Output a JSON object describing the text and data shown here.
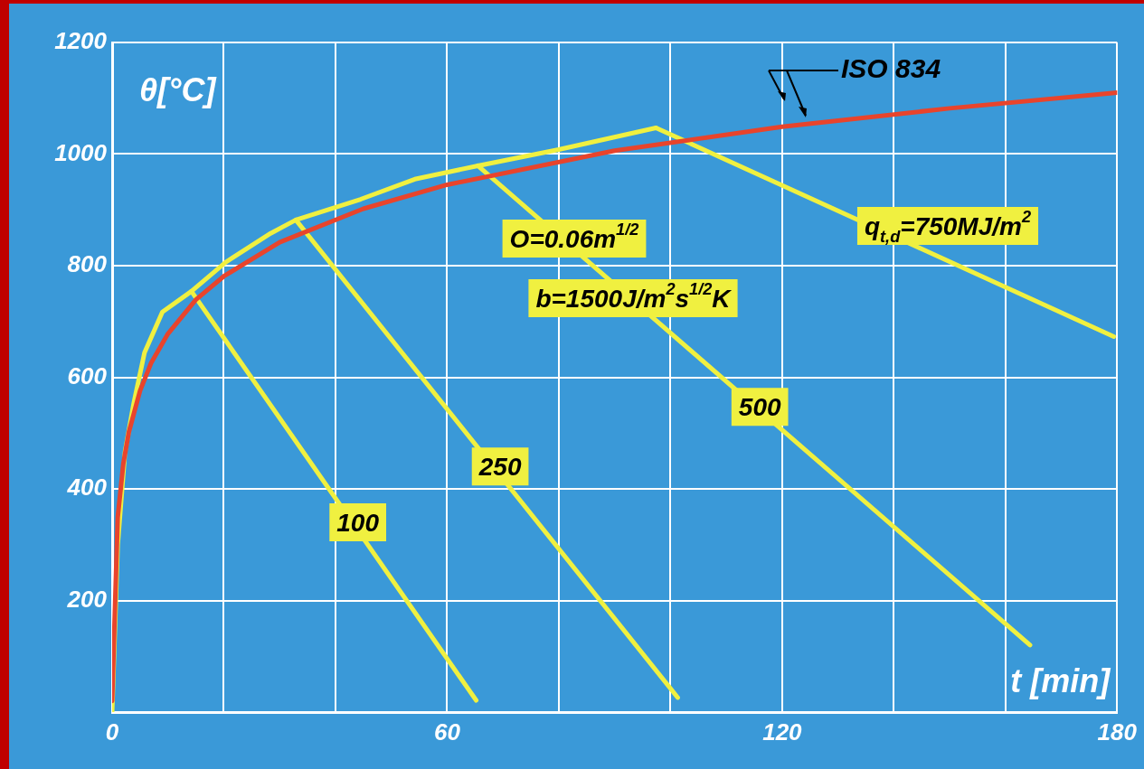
{
  "chart_data": {
    "type": "line",
    "xlabel": "t [min]",
    "ylabel": "θ[°C]",
    "xlim": [
      0,
      180
    ],
    "ylim": [
      0,
      1200
    ],
    "xticks": [
      0,
      {
        "value": 20,
        "label": null
      },
      {
        "value": 40,
        "label": null
      },
      60,
      {
        "value": 80,
        "label": null
      },
      {
        "value": 100,
        "label": null
      },
      120,
      {
        "value": 140,
        "label": null
      },
      {
        "value": 160,
        "label": null
      },
      180
    ],
    "yticks": [
      {
        "value": 0,
        "label": null
      },
      200,
      400,
      600,
      800,
      1000,
      1200
    ],
    "grid": true,
    "legend": false,
    "marker": "none",
    "line_style": "solid",
    "series": [
      {
        "name": "ISO 834",
        "color": "#e8442c",
        "x": [
          0,
          1,
          2,
          3,
          5,
          7,
          10,
          15,
          20,
          30,
          45,
          60,
          90,
          120,
          150,
          180
        ],
        "values": [
          20,
          349,
          445,
          502,
          576,
          626,
          678,
          739,
          781,
          842,
          902,
          945,
          1006,
          1049,
          1082,
          1110
        ]
      },
      {
        "color": "#f0f040",
        "x": [
          0,
          1,
          2.3,
          3.9,
          5.8,
          9,
          14.2,
          20.3,
          28.4,
          32.9,
          44.5,
          54.2,
          65.5,
          80,
          97.4
        ],
        "values": [
          0,
          300,
          466,
          555,
          644,
          717,
          754,
          806,
          858,
          882,
          919,
          955,
          979,
          1008,
          1047
        ]
      },
      {
        "color": "#f0f040",
        "x": [
          14.2,
          65.2
        ],
        "values": [
          754,
          21
        ]
      },
      {
        "color": "#f0f040",
        "x": [
          32.9,
          101.3
        ],
        "values": [
          882,
          26
        ]
      },
      {
        "color": "#f0f040",
        "x": [
          65.5,
          164.4
        ],
        "values": [
          979,
          120
        ]
      },
      {
        "color": "#f0f040",
        "x": [
          97.4,
          179.4
        ],
        "values": [
          1047,
          673
        ]
      }
    ],
    "annotations": [
      {
        "text": "100",
        "x": 44,
        "y": 340
      },
      {
        "text": "250",
        "x": 69.5,
        "y": 440
      },
      {
        "text": "500",
        "x": 116,
        "y": 547
      },
      "O=0.06m$^{1/2}$",
      "b=1500J/m$^{2}$s$^{1/2}$K",
      "q$_{t,d}$=750MJ/m$^{2}$"
    ]
  }
}
